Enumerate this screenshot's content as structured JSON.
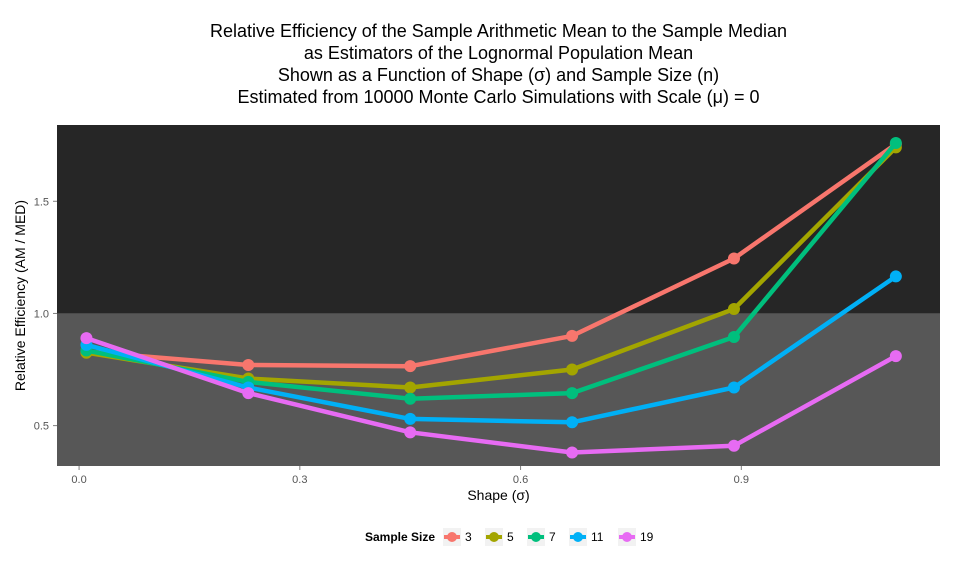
{
  "chart_data": {
    "type": "line",
    "title_lines": [
      "Relative Efficiency of the Sample Arithmetic Mean to the Sample Median",
      "as Estimators of the Lognormal Population Mean",
      "Shown as a Function of Shape (σ) and Sample Size (n)",
      "Estimated from 10000 Monte Carlo Simulations with Scale (μ) = 0"
    ],
    "xlabel": "Shape (σ)",
    "ylabel": "Relative Efficiency (AM / MED)",
    "xlim": [
      -0.03,
      1.17
    ],
    "ylim": [
      0.32,
      1.84
    ],
    "x_ticks": [
      0.0,
      0.3,
      0.6,
      0.9
    ],
    "x_tick_labels": [
      "0.0",
      "0.3",
      "0.6",
      "0.9"
    ],
    "y_ticks": [
      0.5,
      1.0,
      1.5
    ],
    "y_tick_labels": [
      "0.5",
      "1.0",
      "1.5"
    ],
    "background_split_y": 1.0,
    "background_colors": {
      "upper": "#262626",
      "lower": "#575757"
    },
    "grid": false,
    "legend": {
      "title": "Sample Size",
      "position": "bottom"
    },
    "x": [
      0.01,
      0.23,
      0.45,
      0.67,
      0.89,
      1.11
    ],
    "series": [
      {
        "name": "3",
        "color": "#F8766D",
        "values": [
          0.83,
          0.77,
          0.765,
          0.9,
          1.245,
          1.755
        ]
      },
      {
        "name": "5",
        "color": "#A3A500",
        "values": [
          0.825,
          0.71,
          0.67,
          0.75,
          1.02,
          1.74
        ]
      },
      {
        "name": "7",
        "color": "#00BF7D",
        "values": [
          0.835,
          0.695,
          0.62,
          0.645,
          0.895,
          1.76
        ]
      },
      {
        "name": "11",
        "color": "#00B0F6",
        "values": [
          0.86,
          0.67,
          0.53,
          0.515,
          0.67,
          1.165
        ]
      },
      {
        "name": "19",
        "color": "#E76BF3",
        "values": [
          0.89,
          0.645,
          0.47,
          0.38,
          0.41,
          0.81
        ]
      }
    ]
  }
}
